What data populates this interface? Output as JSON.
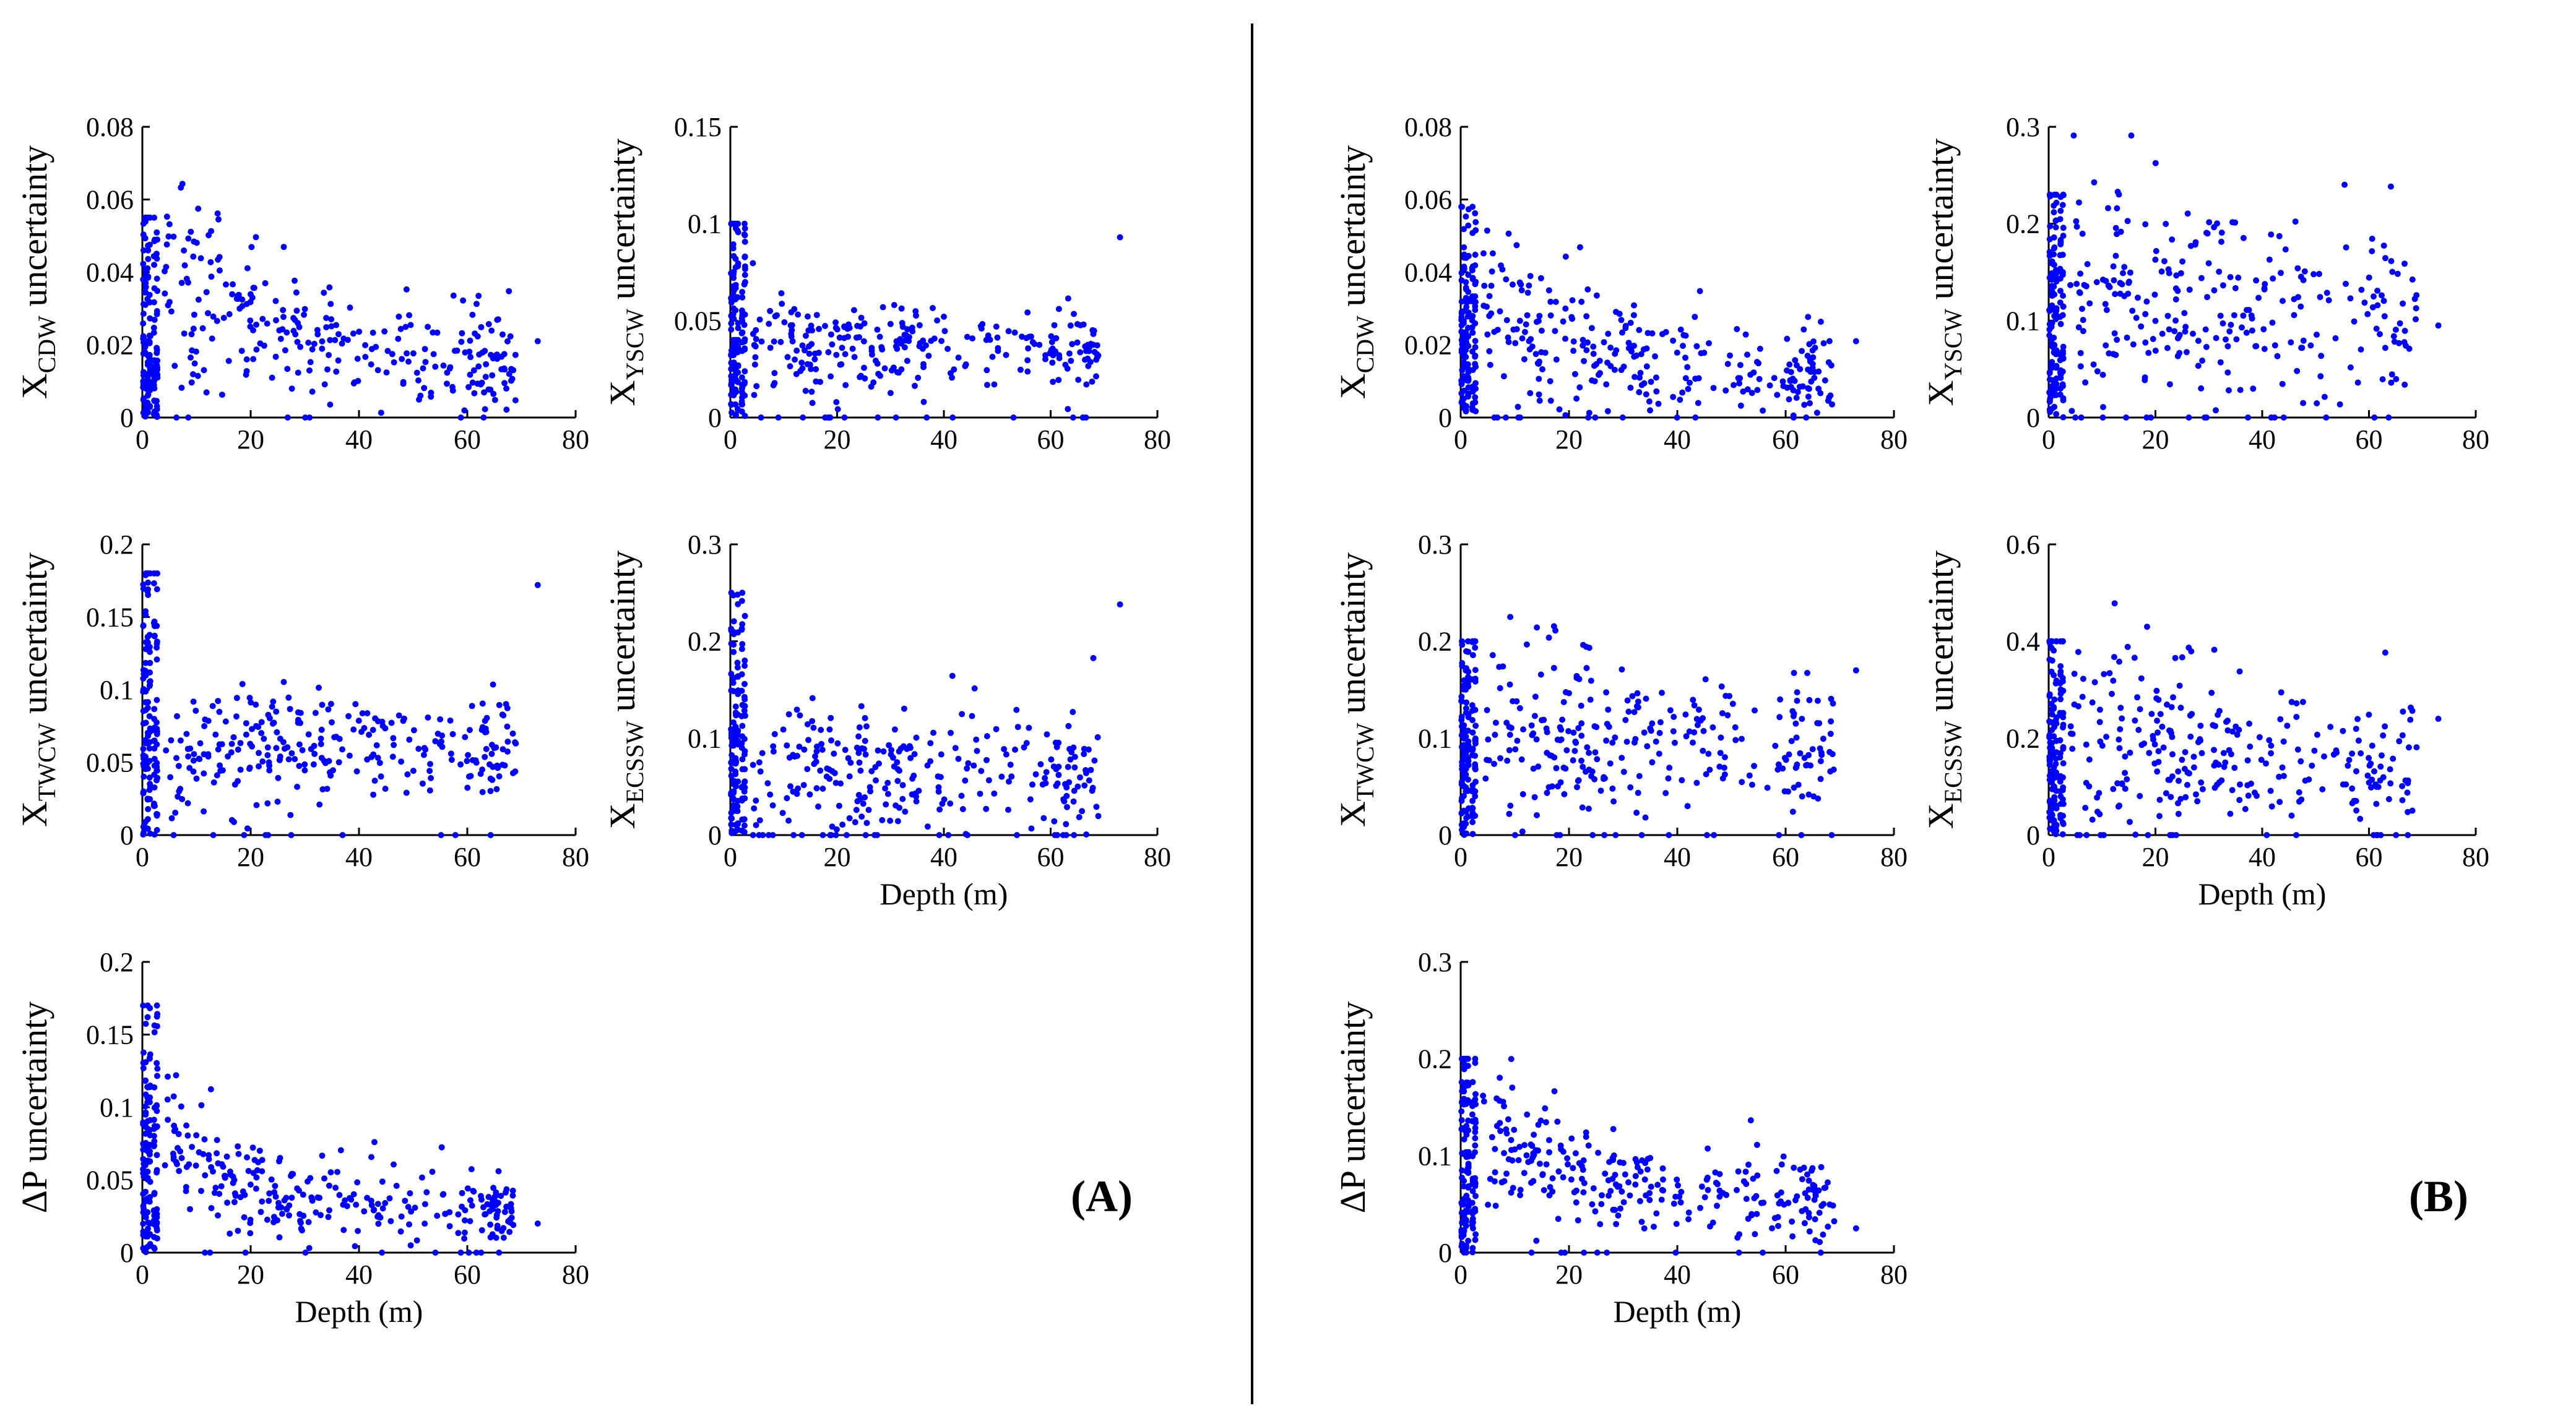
{
  "colors": {
    "point": "#0000ff",
    "axis": "#000000",
    "background": "#ffffff"
  },
  "panel_tags": [
    "(A)",
    "(B)"
  ],
  "x_axis_title": "Depth (m)",
  "chart_data": [
    {
      "id": "A1",
      "type": "scatter",
      "ylabel_main": "X",
      "ylabel_sub": "CDW",
      "ylabel_rest": " uncertainty",
      "xlabel": "",
      "xlim": [
        0,
        80
      ],
      "ylim": [
        0,
        0.08
      ],
      "xticks": [
        0,
        20,
        40,
        60,
        80
      ],
      "yticks": [
        0,
        0.02,
        0.04,
        0.06,
        0.08
      ],
      "ytick_labels": [
        "0",
        "0.02",
        "0.04",
        "0.06",
        "0.08"
      ],
      "generator": {
        "seed": 11,
        "n": 420,
        "dense_max": 0.055,
        "dense_center": 0.018,
        "peak": 0.045,
        "decay": 25,
        "tail": 0.012,
        "spread": 0.008,
        "outlier_x": 73,
        "outlier_y": 0.021
      }
    },
    {
      "id": "A2",
      "type": "scatter",
      "ylabel_main": "X",
      "ylabel_sub": "YSCW",
      "ylabel_rest": " uncertainty",
      "xlabel": "",
      "xlim": [
        0,
        80
      ],
      "ylim": [
        0,
        0.15
      ],
      "xticks": [
        0,
        20,
        40,
        60,
        80
      ],
      "yticks": [
        0,
        0.05,
        0.1,
        0.15
      ],
      "ytick_labels": [
        "0",
        "0.05",
        "0.1",
        "0.15"
      ],
      "generator": {
        "seed": 23,
        "n": 420,
        "dense_max": 0.1,
        "dense_center": 0.03,
        "peak": 0.035,
        "decay": 1000,
        "tail": 0.035,
        "spread": 0.009,
        "outlier_x": 73,
        "outlier_y": 0.093
      }
    },
    {
      "id": "A3",
      "type": "scatter",
      "ylabel_main": "X",
      "ylabel_sub": "TWCW",
      "ylabel_rest": " uncertainty",
      "xlabel": "",
      "xlim": [
        0,
        80
      ],
      "ylim": [
        0,
        0.2
      ],
      "xticks": [
        0,
        20,
        40,
        60,
        80
      ],
      "yticks": [
        0,
        0.05,
        0.1,
        0.15,
        0.2
      ],
      "ytick_labels": [
        "0",
        "0.05",
        "0.1",
        "0.15",
        "0.2"
      ],
      "generator": {
        "seed": 37,
        "n": 420,
        "dense_max": 0.18,
        "dense_center": 0.08,
        "peak": 0.06,
        "decay": 1000,
        "tail": 0.068,
        "spread": 0.015,
        "outlier_x": 73,
        "outlier_y": 0.172
      }
    },
    {
      "id": "A4",
      "type": "scatter",
      "ylabel_main": "X",
      "ylabel_sub": "ECSSW",
      "ylabel_rest": " uncertainty",
      "xlabel": "Depth (m)",
      "xlim": [
        0,
        80
      ],
      "ylim": [
        0,
        0.3
      ],
      "xticks": [
        0,
        20,
        40,
        60,
        80
      ],
      "yticks": [
        0,
        0.1,
        0.2,
        0.3
      ],
      "ytick_labels": [
        "0",
        "0.1",
        "0.2",
        "0.3"
      ],
      "generator": {
        "seed": 41,
        "n": 420,
        "dense_max": 0.25,
        "dense_center": 0.06,
        "peak": 0.065,
        "decay": 1000,
        "tail": 0.07,
        "spread": 0.03,
        "outlier_x": 73,
        "outlier_y": 0.238
      }
    },
    {
      "id": "A5",
      "type": "scatter",
      "ylabel_main": "ΔP uncertainty",
      "ylabel_sub": "",
      "ylabel_rest": "",
      "xlabel": "Depth (m)",
      "xlim": [
        0,
        80
      ],
      "ylim": [
        0,
        0.2
      ],
      "xticks": [
        0,
        20,
        40,
        60,
        80
      ],
      "yticks": [
        0,
        0.05,
        0.1,
        0.15,
        0.2
      ],
      "ytick_labels": [
        "0",
        "0.05",
        "0.1",
        "0.15",
        "0.2"
      ],
      "generator": {
        "seed": 53,
        "n": 420,
        "dense_max": 0.17,
        "dense_center": 0.05,
        "peak": 0.12,
        "decay": 12,
        "tail": 0.03,
        "spread": 0.012,
        "outlier_x": 73,
        "outlier_y": 0.02
      }
    },
    {
      "id": "B1",
      "type": "scatter",
      "ylabel_main": "X",
      "ylabel_sub": "CDW",
      "ylabel_rest": " uncertainty",
      "xlabel": "",
      "xlim": [
        0,
        80
      ],
      "ylim": [
        0,
        0.08
      ],
      "xticks": [
        0,
        20,
        40,
        60,
        80
      ],
      "yticks": [
        0,
        0.02,
        0.04,
        0.06,
        0.08
      ],
      "ytick_labels": [
        "0",
        "0.02",
        "0.04",
        "0.06",
        "0.08"
      ],
      "generator": {
        "seed": 61,
        "n": 420,
        "dense_max": 0.058,
        "dense_center": 0.015,
        "peak": 0.032,
        "decay": 25,
        "tail": 0.01,
        "spread": 0.007,
        "outlier_x": 73,
        "outlier_y": 0.021
      }
    },
    {
      "id": "B2",
      "type": "scatter",
      "ylabel_main": "X",
      "ylabel_sub": "YSCW",
      "ylabel_rest": " uncertainty",
      "xlabel": "",
      "xlim": [
        0,
        80
      ],
      "ylim": [
        0,
        0.3
      ],
      "xticks": [
        0,
        20,
        40,
        60,
        80
      ],
      "yticks": [
        0,
        0.1,
        0.2,
        0.3
      ],
      "ytick_labels": [
        "0",
        "0.1",
        "0.2",
        "0.3"
      ],
      "generator": {
        "seed": 71,
        "n": 420,
        "dense_max": 0.23,
        "dense_center": 0.1,
        "peak": 0.14,
        "decay": 60,
        "tail": 0.08,
        "spread": 0.045,
        "outlier_x": 73,
        "outlier_y": 0.095
      }
    },
    {
      "id": "B3",
      "type": "scatter",
      "ylabel_main": "X",
      "ylabel_sub": "TWCW",
      "ylabel_rest": " uncertainty",
      "xlabel": "",
      "xlim": [
        0,
        80
      ],
      "ylim": [
        0,
        0.3
      ],
      "xticks": [
        0,
        20,
        40,
        60,
        80
      ],
      "yticks": [
        0,
        0.1,
        0.2,
        0.3
      ],
      "ytick_labels": [
        "0",
        "0.1",
        "0.2",
        "0.3"
      ],
      "generator": {
        "seed": 83,
        "n": 420,
        "dense_max": 0.2,
        "dense_center": 0.08,
        "peak": 0.11,
        "decay": 60,
        "tail": 0.085,
        "spread": 0.03,
        "outlier_x": 73,
        "outlier_y": 0.17
      }
    },
    {
      "id": "B4",
      "type": "scatter",
      "ylabel_main": "X",
      "ylabel_sub": "ECSSW",
      "ylabel_rest": " uncertainty",
      "xlabel": "Depth (m)",
      "xlim": [
        0,
        80
      ],
      "ylim": [
        0,
        0.6
      ],
      "xticks": [
        0,
        20,
        40,
        60,
        80
      ],
      "yticks": [
        0,
        0.2,
        0.4,
        0.6
      ],
      "ytick_labels": [
        "0",
        "0.2",
        "0.4",
        "0.6"
      ],
      "generator": {
        "seed": 97,
        "n": 420,
        "dense_max": 0.4,
        "dense_center": 0.15,
        "peak": 0.24,
        "decay": 40,
        "tail": 0.1,
        "spread": 0.07,
        "outlier_x": 73,
        "outlier_y": 0.24
      }
    },
    {
      "id": "B5",
      "type": "scatter",
      "ylabel_main": "ΔP uncertainty",
      "ylabel_sub": "",
      "ylabel_rest": "",
      "xlabel": "Depth (m)",
      "xlim": [
        0,
        80
      ],
      "ylim": [
        0,
        0.3
      ],
      "xticks": [
        0,
        20,
        40,
        60,
        80
      ],
      "yticks": [
        0,
        0.1,
        0.2,
        0.3
      ],
      "ytick_labels": [
        "0",
        "0.1",
        "0.2",
        "0.3"
      ],
      "generator": {
        "seed": 101,
        "n": 420,
        "dense_max": 0.2,
        "dense_center": 0.08,
        "peak": 0.14,
        "decay": 22,
        "tail": 0.05,
        "spread": 0.025,
        "outlier_x": 73,
        "outlier_y": 0.025
      }
    }
  ]
}
